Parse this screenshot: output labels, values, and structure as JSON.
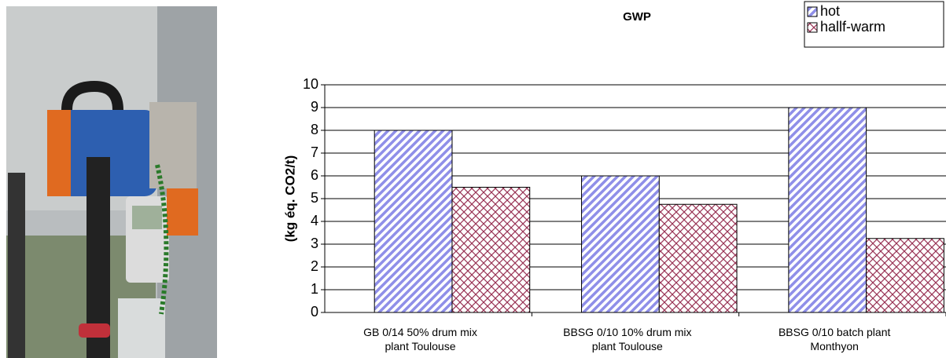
{
  "chart_data": {
    "type": "bar",
    "title": "GWP",
    "y_label": "(kg éq. CO2/t)",
    "categories": [
      "GB 0/14 50% drum mix\nplant Toulouse",
      "BBSG 0/10 10% drum mix\nplant Toulouse",
      "BBSG 0/10 batch plant\nMonthyon"
    ],
    "series": [
      {
        "name": "hot",
        "color": "#8f8fe8",
        "pattern": "diagonal",
        "values": [
          8,
          6,
          9
        ]
      },
      {
        "name": "hallf-warm",
        "color": "#993355",
        "pattern": "crosshatch",
        "values": [
          5.5,
          4.75,
          3.25
        ]
      }
    ],
    "ylim": [
      0,
      10
    ],
    "yticks": [
      0,
      1,
      2,
      3,
      4,
      5,
      6,
      7,
      8,
      9,
      10
    ],
    "grid": true,
    "legend": "top-right"
  }
}
